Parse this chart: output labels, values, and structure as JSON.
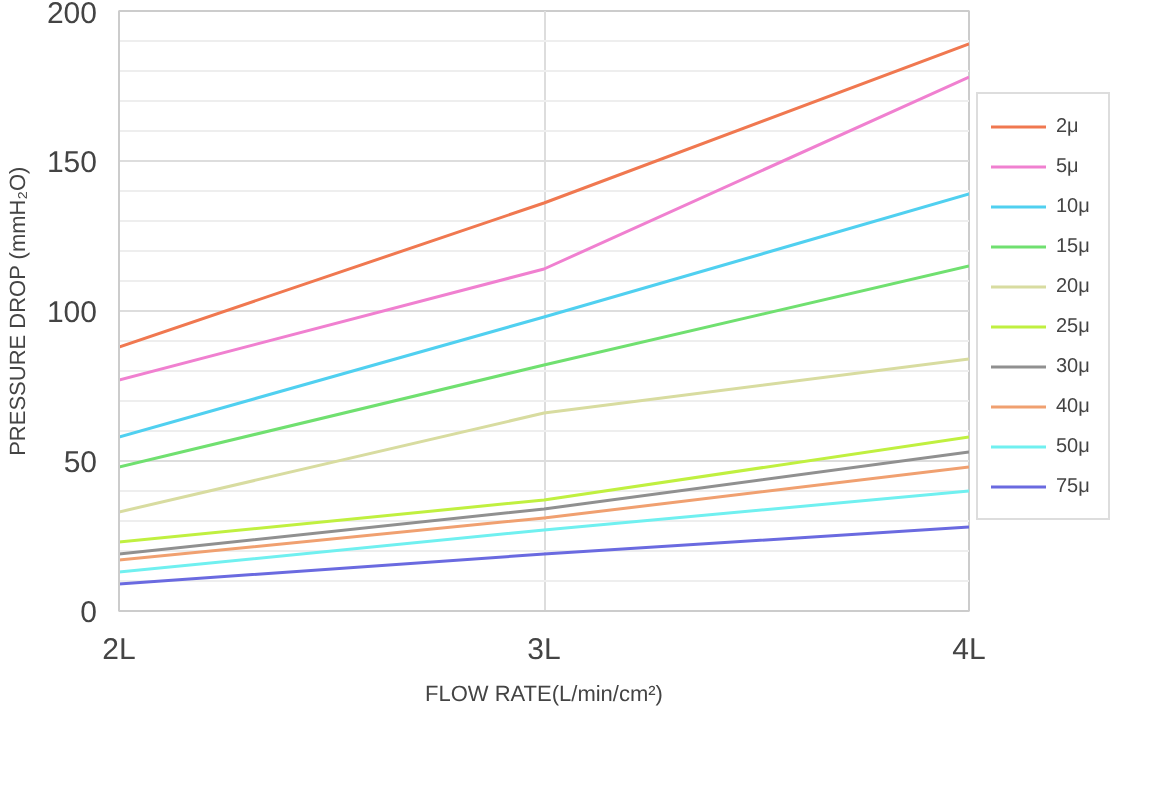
{
  "chart_data": {
    "type": "line",
    "xlabel": "FLOW RATE(L/min/cm²)",
    "ylabel": "PRESSURE DROP (mmH₂O)",
    "x": [
      2,
      3,
      4
    ],
    "xlim": [
      2,
      4
    ],
    "ylim": [
      0,
      200
    ],
    "xticks": [
      {
        "value": 2,
        "label": "2L"
      },
      {
        "value": 3,
        "label": "3L"
      },
      {
        "value": 4,
        "label": "4L"
      }
    ],
    "yticks": [
      0,
      50,
      100,
      150,
      200
    ],
    "grid": true,
    "legend": "right",
    "marker": "none",
    "line_style": "solid",
    "series": [
      {
        "name": "2μ",
        "color": "#f07850",
        "values": [
          88,
          136,
          189
        ]
      },
      {
        "name": "5μ",
        "color": "#f080d0",
        "values": [
          77,
          114,
          178
        ]
      },
      {
        "name": "10μ",
        "color": "#50d0f0",
        "values": [
          58,
          98,
          139
        ]
      },
      {
        "name": "15μ",
        "color": "#70e070",
        "values": [
          48,
          82,
          115
        ]
      },
      {
        "name": "20μ",
        "color": "#d8dca0",
        "values": [
          33,
          66,
          84
        ]
      },
      {
        "name": "25μ",
        "color": "#c0f040",
        "values": [
          23,
          37,
          58
        ]
      },
      {
        "name": "30μ",
        "color": "#909090",
        "values": [
          19,
          34,
          53
        ]
      },
      {
        "name": "40μ",
        "color": "#f0a070",
        "values": [
          17,
          31,
          48
        ]
      },
      {
        "name": "50μ",
        "color": "#70f0f0",
        "values": [
          13,
          27,
          40
        ]
      },
      {
        "name": "75μ",
        "color": "#6a6ae0",
        "values": [
          9,
          19,
          28
        ]
      }
    ]
  }
}
